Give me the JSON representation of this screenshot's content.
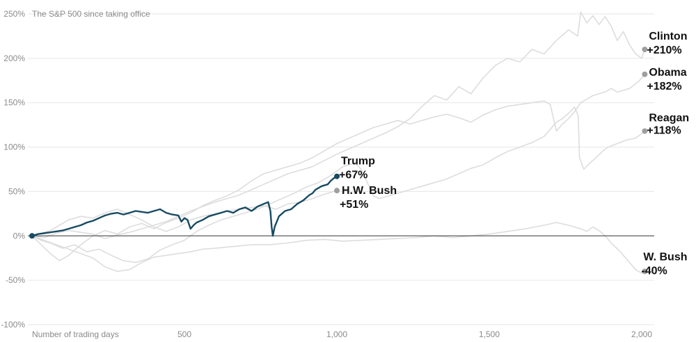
{
  "chart_data": {
    "type": "line",
    "title": "The S&P 500 since taking office",
    "xlabel": "Number of trading days",
    "ylabel": "",
    "xlim": [
      0,
      2000
    ],
    "ylim": [
      -100,
      250
    ],
    "y_ticks": [
      -100,
      -50,
      0,
      50,
      100,
      150,
      200,
      250
    ],
    "y_tick_labels": [
      "-100%",
      "-50%",
      "0%",
      "50%",
      "100%",
      "150%",
      "200%",
      "250%"
    ],
    "x_ticks": [
      500,
      1000,
      1500,
      2000
    ],
    "x_tick_labels": [
      "500",
      "1,000",
      "1,500",
      "2,000"
    ],
    "grid": true,
    "legend": "none",
    "colors": {
      "highlight": "#174a63",
      "end_dot": "#9e9e9e",
      "background_line": "#dddddd"
    },
    "series": [
      {
        "name": "Clinton",
        "value_label": "+210%",
        "highlight": false,
        "points": [
          [
            0,
            0
          ],
          [
            40,
            -2
          ],
          [
            80,
            3
          ],
          [
            120,
            6
          ],
          [
            160,
            4
          ],
          [
            200,
            2
          ],
          [
            240,
            -3
          ],
          [
            280,
            1
          ],
          [
            320,
            4
          ],
          [
            360,
            8
          ],
          [
            400,
            12
          ],
          [
            440,
            16
          ],
          [
            480,
            22
          ],
          [
            520,
            28
          ],
          [
            560,
            33
          ],
          [
            600,
            38
          ],
          [
            640,
            42
          ],
          [
            680,
            46
          ],
          [
            720,
            52
          ],
          [
            760,
            58
          ],
          [
            800,
            64
          ],
          [
            840,
            70
          ],
          [
            880,
            74
          ],
          [
            920,
            78
          ],
          [
            960,
            85
          ],
          [
            1000,
            92
          ],
          [
            1040,
            98
          ],
          [
            1080,
            104
          ],
          [
            1120,
            110
          ],
          [
            1160,
            116
          ],
          [
            1200,
            123
          ],
          [
            1240,
            132
          ],
          [
            1280,
            146
          ],
          [
            1320,
            158
          ],
          [
            1360,
            153
          ],
          [
            1400,
            168
          ],
          [
            1440,
            160
          ],
          [
            1480,
            178
          ],
          [
            1520,
            192
          ],
          [
            1560,
            200
          ],
          [
            1600,
            196
          ],
          [
            1640,
            210
          ],
          [
            1680,
            205
          ],
          [
            1720,
            220
          ],
          [
            1760,
            232
          ],
          [
            1790,
            225
          ],
          [
            1800,
            252
          ],
          [
            1820,
            240
          ],
          [
            1840,
            248
          ],
          [
            1860,
            238
          ],
          [
            1880,
            247
          ],
          [
            1900,
            236
          ],
          [
            1920,
            220
          ],
          [
            1940,
            230
          ],
          [
            1960,
            215
          ],
          [
            1980,
            205
          ],
          [
            2000,
            200
          ],
          [
            2010,
            210
          ]
        ]
      },
      {
        "name": "Obama",
        "value_label": "+182%",
        "highlight": false,
        "points": [
          [
            0,
            0
          ],
          [
            30,
            -10
          ],
          [
            60,
            -20
          ],
          [
            90,
            -28
          ],
          [
            120,
            -22
          ],
          [
            160,
            -10
          ],
          [
            200,
            0
          ],
          [
            240,
            6
          ],
          [
            280,
            2
          ],
          [
            320,
            10
          ],
          [
            360,
            14
          ],
          [
            400,
            8
          ],
          [
            440,
            15
          ],
          [
            480,
            20
          ],
          [
            520,
            26
          ],
          [
            560,
            34
          ],
          [
            600,
            40
          ],
          [
            640,
            45
          ],
          [
            680,
            52
          ],
          [
            720,
            62
          ],
          [
            760,
            70
          ],
          [
            800,
            74
          ],
          [
            840,
            78
          ],
          [
            880,
            82
          ],
          [
            920,
            88
          ],
          [
            960,
            96
          ],
          [
            1000,
            104
          ],
          [
            1040,
            110
          ],
          [
            1080,
            116
          ],
          [
            1120,
            122
          ],
          [
            1160,
            126
          ],
          [
            1200,
            130
          ],
          [
            1240,
            126
          ],
          [
            1280,
            130
          ],
          [
            1320,
            134
          ],
          [
            1360,
            137
          ],
          [
            1400,
            133
          ],
          [
            1440,
            128
          ],
          [
            1480,
            136
          ],
          [
            1520,
            142
          ],
          [
            1560,
            146
          ],
          [
            1600,
            148
          ],
          [
            1640,
            150
          ],
          [
            1680,
            152
          ],
          [
            1700,
            148
          ],
          [
            1720,
            118
          ],
          [
            1740,
            126
          ],
          [
            1760,
            132
          ],
          [
            1780,
            140
          ],
          [
            1800,
            150
          ],
          [
            1840,
            158
          ],
          [
            1880,
            162
          ],
          [
            1900,
            166
          ],
          [
            1920,
            162
          ],
          [
            1960,
            166
          ],
          [
            1990,
            174
          ],
          [
            2010,
            182
          ]
        ]
      },
      {
        "name": "Reagan",
        "value_label": "+118%",
        "highlight": false,
        "points": [
          [
            0,
            0
          ],
          [
            30,
            -5
          ],
          [
            60,
            -8
          ],
          [
            100,
            -14
          ],
          [
            140,
            -10
          ],
          [
            180,
            -18
          ],
          [
            220,
            -15
          ],
          [
            260,
            -22
          ],
          [
            300,
            -28
          ],
          [
            340,
            -30
          ],
          [
            380,
            -26
          ],
          [
            420,
            -16
          ],
          [
            460,
            -10
          ],
          [
            500,
            -5
          ],
          [
            540,
            5
          ],
          [
            580,
            12
          ],
          [
            620,
            18
          ],
          [
            660,
            22
          ],
          [
            700,
            26
          ],
          [
            740,
            30
          ],
          [
            780,
            36
          ],
          [
            820,
            42
          ],
          [
            860,
            48
          ],
          [
            900,
            55
          ],
          [
            940,
            60
          ],
          [
            980,
            68
          ],
          [
            1020,
            78
          ],
          [
            1060,
            82
          ],
          [
            1080,
            75
          ],
          [
            1100,
            60
          ],
          [
            1120,
            45
          ],
          [
            1140,
            42
          ],
          [
            1160,
            44
          ],
          [
            1200,
            48
          ],
          [
            1240,
            52
          ],
          [
            1280,
            56
          ],
          [
            1320,
            60
          ],
          [
            1360,
            64
          ],
          [
            1400,
            70
          ],
          [
            1440,
            76
          ],
          [
            1480,
            80
          ],
          [
            1520,
            88
          ],
          [
            1560,
            95
          ],
          [
            1600,
            100
          ],
          [
            1640,
            105
          ],
          [
            1680,
            112
          ],
          [
            1720,
            128
          ],
          [
            1740,
            132
          ],
          [
            1760,
            138
          ],
          [
            1780,
            145
          ],
          [
            1792,
            135
          ],
          [
            1796,
            88
          ],
          [
            1810,
            75
          ],
          [
            1830,
            82
          ],
          [
            1850,
            88
          ],
          [
            1870,
            95
          ],
          [
            1890,
            100
          ],
          [
            1920,
            104
          ],
          [
            1950,
            108
          ],
          [
            1980,
            110
          ],
          [
            2010,
            118
          ]
        ]
      },
      {
        "name": "H.W. Bush",
        "value_label": "+51%",
        "highlight": false,
        "points": [
          [
            0,
            0
          ],
          [
            30,
            3
          ],
          [
            60,
            6
          ],
          [
            90,
            12
          ],
          [
            120,
            18
          ],
          [
            160,
            22
          ],
          [
            200,
            20
          ],
          [
            240,
            26
          ],
          [
            280,
            30
          ],
          [
            320,
            24
          ],
          [
            360,
            18
          ],
          [
            400,
            10
          ],
          [
            440,
            5
          ],
          [
            480,
            10
          ],
          [
            520,
            18
          ],
          [
            560,
            22
          ],
          [
            600,
            25
          ],
          [
            640,
            28
          ],
          [
            680,
            30
          ],
          [
            720,
            32
          ],
          [
            760,
            34
          ],
          [
            800,
            30
          ],
          [
            840,
            36
          ],
          [
            880,
            38
          ],
          [
            920,
            42
          ],
          [
            960,
            47
          ],
          [
            1000,
            51
          ]
        ]
      },
      {
        "name": "W. Bush",
        "value_label": "-40%",
        "highlight": false,
        "points": [
          [
            0,
            0
          ],
          [
            40,
            -5
          ],
          [
            80,
            -10
          ],
          [
            120,
            -15
          ],
          [
            160,
            -20
          ],
          [
            200,
            -25
          ],
          [
            240,
            -35
          ],
          [
            280,
            -40
          ],
          [
            320,
            -38
          ],
          [
            360,
            -30
          ],
          [
            400,
            -24
          ],
          [
            440,
            -22
          ],
          [
            480,
            -20
          ],
          [
            520,
            -18
          ],
          [
            560,
            -15
          ],
          [
            600,
            -14
          ],
          [
            660,
            -12
          ],
          [
            720,
            -10
          ],
          [
            780,
            -10
          ],
          [
            840,
            -8
          ],
          [
            900,
            -5
          ],
          [
            960,
            -4
          ],
          [
            1020,
            -6
          ],
          [
            1080,
            -5
          ],
          [
            1140,
            -4
          ],
          [
            1200,
            -3
          ],
          [
            1260,
            -2
          ],
          [
            1320,
            0
          ],
          [
            1380,
            -2
          ],
          [
            1440,
            0
          ],
          [
            1500,
            2
          ],
          [
            1560,
            5
          ],
          [
            1620,
            8
          ],
          [
            1680,
            12
          ],
          [
            1720,
            15
          ],
          [
            1760,
            12
          ],
          [
            1800,
            8
          ],
          [
            1820,
            5
          ],
          [
            1840,
            10
          ],
          [
            1860,
            6
          ],
          [
            1880,
            0
          ],
          [
            1900,
            -8
          ],
          [
            1930,
            -18
          ],
          [
            1960,
            -30
          ],
          [
            1980,
            -38
          ],
          [
            2000,
            -42
          ],
          [
            2010,
            -40
          ]
        ]
      },
      {
        "name": "Trump",
        "value_label": "+67%",
        "highlight": true,
        "points": [
          [
            0,
            0
          ],
          [
            20,
            2
          ],
          [
            40,
            3
          ],
          [
            60,
            4
          ],
          [
            80,
            5
          ],
          [
            100,
            6
          ],
          [
            120,
            8
          ],
          [
            140,
            10
          ],
          [
            160,
            12
          ],
          [
            180,
            15
          ],
          [
            200,
            17
          ],
          [
            220,
            20
          ],
          [
            240,
            23
          ],
          [
            260,
            25
          ],
          [
            280,
            26
          ],
          [
            300,
            24
          ],
          [
            320,
            26
          ],
          [
            340,
            28
          ],
          [
            360,
            27
          ],
          [
            380,
            26
          ],
          [
            400,
            28
          ],
          [
            420,
            30
          ],
          [
            440,
            26
          ],
          [
            460,
            24
          ],
          [
            480,
            23
          ],
          [
            490,
            16
          ],
          [
            500,
            20
          ],
          [
            510,
            18
          ],
          [
            520,
            8
          ],
          [
            530,
            12
          ],
          [
            540,
            15
          ],
          [
            560,
            18
          ],
          [
            580,
            22
          ],
          [
            600,
            24
          ],
          [
            620,
            26
          ],
          [
            640,
            28
          ],
          [
            660,
            26
          ],
          [
            680,
            30
          ],
          [
            700,
            32
          ],
          [
            720,
            28
          ],
          [
            740,
            33
          ],
          [
            760,
            36
          ],
          [
            775,
            38
          ],
          [
            782,
            28
          ],
          [
            786,
            10
          ],
          [
            790,
            0
          ],
          [
            796,
            10
          ],
          [
            810,
            22
          ],
          [
            830,
            28
          ],
          [
            850,
            30
          ],
          [
            870,
            36
          ],
          [
            890,
            40
          ],
          [
            910,
            46
          ],
          [
            920,
            48
          ],
          [
            930,
            52
          ],
          [
            950,
            56
          ],
          [
            970,
            58
          ],
          [
            980,
            62
          ],
          [
            990,
            65
          ],
          [
            1000,
            67
          ]
        ]
      }
    ]
  }
}
